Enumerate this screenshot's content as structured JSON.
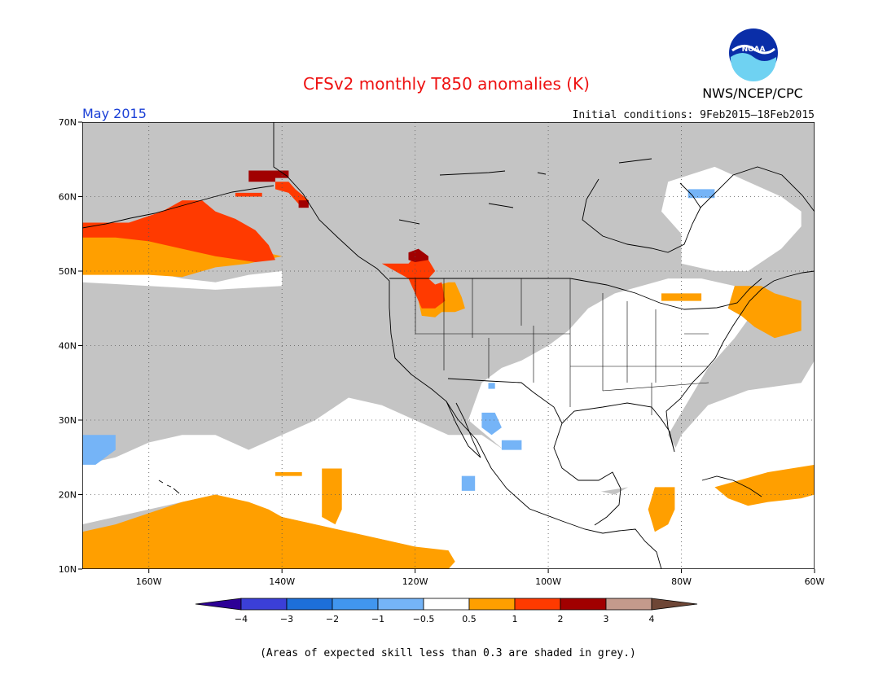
{
  "header": {
    "title": "CFSv2 monthly T850 anomalies (K)",
    "month": "May 2015",
    "initial_conditions": "Initial conditions: 9Feb2015–18Feb2015",
    "organization": "NWS/NCEP/CPC",
    "logo_text": "NOAA"
  },
  "map": {
    "lon_range": [
      -170,
      -60
    ],
    "lat_range": [
      10,
      70
    ],
    "lat_ticks": [
      {
        "value": 70,
        "label": "70N"
      },
      {
        "value": 60,
        "label": "60N"
      },
      {
        "value": 50,
        "label": "50N"
      },
      {
        "value": 40,
        "label": "40N"
      },
      {
        "value": 30,
        "label": "30N"
      },
      {
        "value": 20,
        "label": "20N"
      },
      {
        "value": 10,
        "label": "10N"
      }
    ],
    "lon_ticks": [
      {
        "value": -160,
        "label": "160W"
      },
      {
        "value": -140,
        "label": "140W"
      },
      {
        "value": -120,
        "label": "120W"
      },
      {
        "value": -100,
        "label": "100W"
      },
      {
        "value": -80,
        "label": "80W"
      },
      {
        "value": -60,
        "label": "60W"
      }
    ],
    "grid": "dotted",
    "colors": {
      "grey": "#c4c4c4",
      "white": "#ffffff",
      "c_05_1": "#ff9f00",
      "c_1_2": "#ff3a00",
      "c_2_3": "#a10000",
      "neg_05_1": "#75b4f7"
    },
    "anomaly_regions": [
      {
        "name": "alaska-gulf-positive-05-1",
        "band": "c_05_1",
        "points": [
          [
            -170,
            55
          ],
          [
            -155,
            55
          ],
          [
            -149,
            55.5
          ],
          [
            -145,
            53
          ],
          [
            -140,
            52
          ],
          [
            -145,
            51
          ],
          [
            -150,
            50.5
          ],
          [
            -155,
            49.2
          ],
          [
            -160,
            49.5
          ],
          [
            -165,
            49.5
          ],
          [
            -170,
            49.5
          ]
        ]
      },
      {
        "name": "alaska-gulf-positive-1-2",
        "band": "c_1_2",
        "points": [
          [
            -170,
            56.5
          ],
          [
            -163,
            56.5
          ],
          [
            -158,
            58
          ],
          [
            -155,
            59.5
          ],
          [
            -152,
            59.5
          ],
          [
            -150,
            58
          ],
          [
            -147,
            57
          ],
          [
            -144,
            55.5
          ],
          [
            -142,
            53.5
          ],
          [
            -141,
            51.5
          ],
          [
            -144,
            51.2
          ],
          [
            -150,
            52
          ],
          [
            -155,
            53
          ],
          [
            -160,
            54
          ],
          [
            -165,
            54.5
          ],
          [
            -170,
            54.5
          ]
        ]
      },
      {
        "name": "yukon-positive-1-2",
        "band": "c_1_2",
        "points": [
          [
            -141,
            62
          ],
          [
            -139,
            62
          ],
          [
            -138,
            61
          ],
          [
            -136,
            59.5
          ],
          [
            -137,
            58.5
          ],
          [
            -139,
            60.5
          ],
          [
            -141,
            61
          ]
        ]
      },
      {
        "name": "yukon-small-positive-1-2",
        "band": "c_1_2",
        "points": [
          [
            -147,
            60.5
          ],
          [
            -143,
            60.5
          ],
          [
            -143,
            60
          ],
          [
            -147,
            60
          ]
        ]
      },
      {
        "name": "yukon-positive-2-3",
        "band": "c_2_3",
        "points": [
          [
            -145,
            63.5
          ],
          [
            -139,
            63.5
          ],
          [
            -139,
            62.5
          ],
          [
            -141,
            62.5
          ],
          [
            -141,
            62
          ],
          [
            -145,
            62
          ]
        ]
      },
      {
        "name": "yukon-dot-positive-2-3",
        "band": "c_2_3",
        "points": [
          [
            -137.5,
            59.5
          ],
          [
            -136,
            59.5
          ],
          [
            -136,
            58.5
          ],
          [
            -137.5,
            58.5
          ]
        ]
      },
      {
        "name": "pacific-northwest-positive-05-1",
        "band": "c_05_1",
        "points": [
          [
            -120,
            48
          ],
          [
            -117,
            48
          ],
          [
            -115,
            48.5
          ],
          [
            -114,
            48.5
          ],
          [
            -113,
            46.5
          ],
          [
            -112.5,
            45
          ],
          [
            -114,
            44.5
          ],
          [
            -116,
            44.5
          ],
          [
            -117,
            43.8
          ],
          [
            -119,
            44
          ]
        ]
      },
      {
        "name": "pacific-northwest-positive-1-2",
        "band": "c_1_2",
        "points": [
          [
            -125,
            51
          ],
          [
            -121,
            51
          ],
          [
            -120,
            52
          ],
          [
            -118,
            51.5
          ],
          [
            -117,
            50
          ],
          [
            -118,
            49
          ],
          [
            -117,
            48.2
          ],
          [
            -116,
            48.5
          ],
          [
            -115.5,
            46
          ],
          [
            -117,
            45
          ],
          [
            -119,
            45
          ],
          [
            -120,
            47
          ],
          [
            -121,
            49
          ],
          [
            -123,
            50
          ]
        ]
      },
      {
        "name": "pacific-northwest-positive-2-3",
        "band": "c_2_3",
        "points": [
          [
            -121,
            52.5
          ],
          [
            -119.5,
            53
          ],
          [
            -118,
            52
          ],
          [
            -118,
            51.5
          ],
          [
            -120,
            51.2
          ],
          [
            -121,
            51.5
          ]
        ]
      },
      {
        "name": "north-pacific-subtropical-positive-05-1",
        "band": "c_05_1",
        "points": [
          [
            -170,
            15
          ],
          [
            -165,
            16
          ],
          [
            -160,
            17.5
          ],
          [
            -155,
            19
          ],
          [
            -150,
            20
          ],
          [
            -145,
            19
          ],
          [
            -142,
            18
          ],
          [
            -140,
            17
          ],
          [
            -135,
            16
          ],
          [
            -130,
            15
          ],
          [
            -125,
            14
          ],
          [
            -120,
            13
          ],
          [
            -115,
            12.5
          ],
          [
            -114,
            11
          ],
          [
            -115,
            10
          ],
          [
            -170,
            10
          ]
        ]
      },
      {
        "name": "hawaii-east-positive-05-1",
        "band": "c_05_1",
        "points": [
          [
            -134,
            23.5
          ],
          [
            -131,
            23.5
          ],
          [
            -131,
            18
          ],
          [
            -132,
            16
          ],
          [
            -134,
            17
          ]
        ]
      },
      {
        "name": "pacific-strip-positive-05-1",
        "band": "c_05_1",
        "points": [
          [
            -141,
            23
          ],
          [
            -137,
            23
          ],
          [
            -137,
            22.5
          ],
          [
            -141,
            22.5
          ]
        ]
      },
      {
        "name": "central-america-positive-05-1",
        "band": "c_05_1",
        "points": [
          [
            -84,
            21
          ],
          [
            -81,
            21
          ],
          [
            -81,
            18
          ],
          [
            -82,
            16
          ],
          [
            -84,
            15
          ],
          [
            -85,
            18
          ]
        ]
      },
      {
        "name": "caribbean-positive-05-1",
        "band": "c_05_1",
        "points": [
          [
            -75,
            21
          ],
          [
            -67,
            23
          ],
          [
            -60,
            24
          ],
          [
            -60,
            20
          ],
          [
            -62,
            19.5
          ],
          [
            -67,
            19
          ],
          [
            -70,
            18.5
          ],
          [
            -73,
            19.5
          ]
        ]
      },
      {
        "name": "new-england-positive-05-1",
        "band": "c_05_1",
        "points": [
          [
            -72,
            48
          ],
          [
            -68,
            48
          ],
          [
            -66,
            47
          ],
          [
            -62,
            46
          ],
          [
            -62,
            42
          ],
          [
            -66,
            41
          ],
          [
            -69,
            42.5
          ],
          [
            -71,
            44
          ],
          [
            -73,
            45
          ]
        ]
      },
      {
        "name": "great-lakes-positive-05-1",
        "band": "c_05_1",
        "points": [
          [
            -83,
            47
          ],
          [
            -77,
            47
          ],
          [
            -77,
            46
          ],
          [
            -83,
            46
          ]
        ]
      },
      {
        "name": "hawaii-west-negative-05-1",
        "band": "neg_05_1",
        "points": [
          [
            -170,
            28
          ],
          [
            -165,
            28
          ],
          [
            -165,
            26
          ],
          [
            -168,
            24
          ],
          [
            -170,
            24
          ]
        ]
      },
      {
        "name": "baja-negative-05-1",
        "band": "neg_05_1",
        "points": [
          [
            -110,
            31
          ],
          [
            -108,
            31
          ],
          [
            -107,
            29
          ],
          [
            -108.5,
            28
          ],
          [
            -110,
            29
          ]
        ]
      },
      {
        "name": "mexico-negative-05-1",
        "band": "neg_05_1",
        "points": [
          [
            -107,
            27.3
          ],
          [
            -104,
            27.3
          ],
          [
            -104,
            26
          ],
          [
            -107,
            26
          ]
        ]
      },
      {
        "name": "pacific-mexico-negative-05-1",
        "band": "neg_05_1",
        "points": [
          [
            -113,
            22.5
          ],
          [
            -111,
            22.5
          ],
          [
            -111,
            20.5
          ],
          [
            -113,
            20.5
          ]
        ]
      },
      {
        "name": "quebec-negative-05-1",
        "band": "neg_05_1",
        "points": [
          [
            -79,
            61
          ],
          [
            -75,
            61
          ],
          [
            -75,
            59.8
          ],
          [
            -79,
            59.8
          ]
        ]
      },
      {
        "name": "arizona-negative-05-1",
        "band": "neg_05_1",
        "points": [
          [
            -109,
            35
          ],
          [
            -108,
            35
          ],
          [
            -108,
            34.2
          ],
          [
            -109,
            34.2
          ]
        ]
      }
    ],
    "white_regions": [
      {
        "name": "conus-east-white",
        "points": [
          [
            -112,
            30
          ],
          [
            -110,
            35
          ],
          [
            -107,
            37
          ],
          [
            -104,
            38
          ],
          [
            -100,
            40
          ],
          [
            -97,
            42
          ],
          [
            -94,
            45
          ],
          [
            -90,
            47
          ],
          [
            -86,
            48
          ],
          [
            -82,
            49
          ],
          [
            -77,
            49
          ],
          [
            -72,
            48
          ],
          [
            -73,
            45
          ],
          [
            -70,
            43.5
          ],
          [
            -72,
            41
          ],
          [
            -74,
            39
          ],
          [
            -76,
            37
          ],
          [
            -78,
            34
          ],
          [
            -80,
            31
          ],
          [
            -82,
            28
          ],
          [
            -80,
            25
          ],
          [
            -82,
            23
          ],
          [
            -88,
            21
          ],
          [
            -95,
            20
          ],
          [
            -100,
            22
          ],
          [
            -104,
            24
          ],
          [
            -108,
            27
          ]
        ]
      },
      {
        "name": "tropical-east-white",
        "points": [
          [
            -120,
            28
          ],
          [
            -110,
            28
          ],
          [
            -100,
            22
          ],
          [
            -90,
            20
          ],
          [
            -82,
            24
          ],
          [
            -80,
            28
          ],
          [
            -76,
            32
          ],
          [
            -70,
            34
          ],
          [
            -62,
            35
          ],
          [
            -60,
            38
          ],
          [
            -60,
            10
          ],
          [
            -120,
            10
          ],
          [
            -120,
            14
          ],
          [
            -125,
            16
          ],
          [
            -130,
            18
          ]
        ]
      },
      {
        "name": "subtropical-pacific-white",
        "points": [
          [
            -170,
            24
          ],
          [
            -165,
            25
          ],
          [
            -160,
            27
          ],
          [
            -155,
            28
          ],
          [
            -150,
            28
          ],
          [
            -145,
            26
          ],
          [
            -140,
            28
          ],
          [
            -135,
            30
          ],
          [
            -130,
            33
          ],
          [
            -125,
            32
          ],
          [
            -120,
            30
          ],
          [
            -115,
            28
          ],
          [
            -112,
            24
          ],
          [
            -113,
            18
          ],
          [
            -120,
            13
          ],
          [
            -130,
            15
          ],
          [
            -140,
            17
          ],
          [
            -150,
            20
          ],
          [
            -160,
            18
          ],
          [
            -170,
            16
          ]
        ]
      },
      {
        "name": "quebec-white",
        "points": [
          [
            -82,
            62
          ],
          [
            -75,
            64
          ],
          [
            -70,
            62
          ],
          [
            -65,
            60
          ],
          [
            -62,
            58
          ],
          [
            -62,
            56
          ],
          [
            -65,
            53
          ],
          [
            -70,
            50
          ],
          [
            -75,
            50
          ],
          [
            -80,
            51
          ],
          [
            -80,
            55
          ],
          [
            -83,
            58
          ]
        ]
      },
      {
        "name": "pacific-north-white",
        "points": [
          [
            -170,
            50
          ],
          [
            -160,
            50
          ],
          [
            -155,
            49
          ],
          [
            -150,
            48.5
          ],
          [
            -145,
            49.5
          ],
          [
            -140,
            50
          ],
          [
            -140,
            48
          ],
          [
            -150,
            47.5
          ],
          [
            -160,
            48
          ],
          [
            -170,
            48.5
          ]
        ]
      }
    ]
  },
  "colorbar": {
    "colors": [
      "#2d0096",
      "#3b3fd8",
      "#1d6fd9",
      "#4196ef",
      "#75b4f7",
      "#ffffff",
      "#ff9f00",
      "#ff3a00",
      "#a10000",
      "#c49a8c",
      "#6e4636"
    ],
    "labels": [
      "−4",
      "−3",
      "−2",
      "−1",
      "−0.5",
      "0.5",
      "1",
      "2",
      "3",
      "4"
    ]
  },
  "footer": {
    "note": "(Areas of expected skill less than 0.3 are shaded in grey.)"
  }
}
